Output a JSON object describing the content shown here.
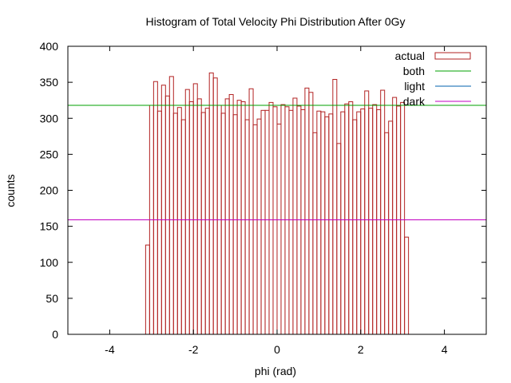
{
  "chart_data": {
    "type": "bar",
    "title": "Histogram of Total Velocity Phi Distribution After 0Gy",
    "xlabel": "phi (rad)",
    "ylabel": "counts",
    "xlim": [
      -5,
      5
    ],
    "ylim": [
      0,
      400
    ],
    "xticks": [
      -4,
      -2,
      0,
      2,
      4
    ],
    "yticks": [
      0,
      50,
      100,
      150,
      200,
      250,
      300,
      350,
      400
    ],
    "grid": false,
    "legend_position": "top-right",
    "bin_start": -3.14159,
    "bin_end": 3.14159,
    "series": [
      {
        "name": "actual",
        "kind": "histogram",
        "color": "#b22222",
        "values": [
          124,
          318,
          351,
          310,
          346,
          331,
          358,
          307,
          315,
          298,
          340,
          323,
          348,
          327,
          308,
          314,
          363,
          356,
          318,
          307,
          327,
          333,
          305,
          325,
          323,
          298,
          341,
          291,
          299,
          311,
          311,
          322,
          316,
          292,
          319,
          316,
          311,
          328,
          317,
          312,
          342,
          336,
          280,
          310,
          309,
          302,
          306,
          354,
          265,
          309,
          320,
          323,
          298,
          309,
          313,
          338,
          314,
          319,
          312,
          339,
          280,
          296,
          329,
          317,
          322,
          135
        ]
      },
      {
        "name": "both",
        "kind": "line",
        "color": "#00a000",
        "y": 318
      },
      {
        "name": "light",
        "kind": "line",
        "color": "#0060ad",
        "y": 159
      },
      {
        "name": "dark",
        "kind": "line",
        "color": "#c000c0",
        "y": 159
      }
    ]
  }
}
